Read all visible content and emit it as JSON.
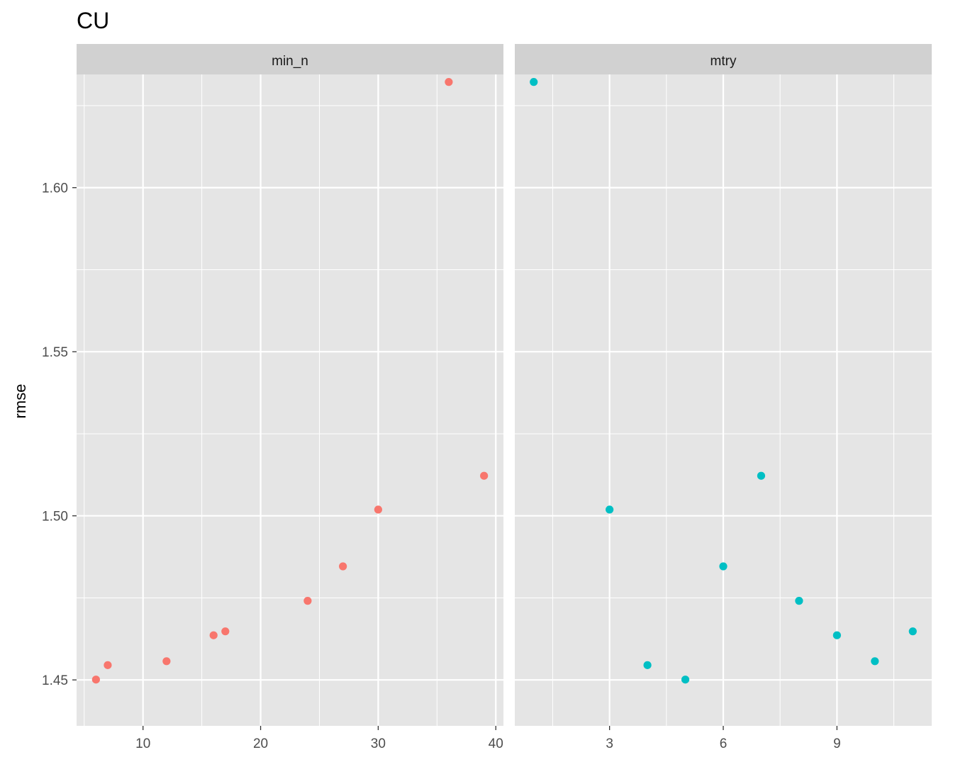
{
  "chart_data": {
    "type": "scatter",
    "title": "CU",
    "ylabel": "rmse",
    "xlabel": "",
    "ylim": [
      1.436,
      1.6345
    ],
    "y_ticks": [
      1.45,
      1.5,
      1.55,
      1.6
    ],
    "y_tick_labels": [
      "1.45",
      "1.50",
      "1.55",
      "1.60"
    ],
    "y_minor_ticks": [
      1.475,
      1.525,
      1.575,
      1.625
    ],
    "grid": true,
    "legend": "none",
    "panel_background": "#e5e5e5",
    "strip_background": "#d1d1d1",
    "panels": [
      {
        "strip": "min_n",
        "color": "#f8766d",
        "xlim": [
          4.35,
          40.65
        ],
        "x_ticks": [
          10,
          20,
          30,
          40
        ],
        "x_tick_labels": [
          "10",
          "20",
          "30",
          "40"
        ],
        "x_minor_ticks": [
          5,
          15,
          25,
          35
        ],
        "points": [
          {
            "x": 6,
            "y": 1.4501
          },
          {
            "x": 7,
            "y": 1.4545
          },
          {
            "x": 12,
            "y": 1.4557
          },
          {
            "x": 16,
            "y": 1.4636
          },
          {
            "x": 17,
            "y": 1.4648
          },
          {
            "x": 24,
            "y": 1.4741
          },
          {
            "x": 27,
            "y": 1.4846
          },
          {
            "x": 30,
            "y": 1.5019
          },
          {
            "x": 36,
            "y": 1.6322
          },
          {
            "x": 39,
            "y": 1.5122
          }
        ]
      },
      {
        "strip": "mtry",
        "color": "#00bfc4",
        "xlim": [
          0.5,
          11.5
        ],
        "x_ticks": [
          3,
          6,
          9
        ],
        "x_tick_labels": [
          "3",
          "6",
          "9"
        ],
        "x_minor_ticks": [
          1.5,
          4.5,
          7.5,
          10.5
        ],
        "points": [
          {
            "x": 1,
            "y": 1.6322
          },
          {
            "x": 3,
            "y": 1.5019
          },
          {
            "x": 4,
            "y": 1.4545
          },
          {
            "x": 5,
            "y": 1.4501
          },
          {
            "x": 6,
            "y": 1.4846
          },
          {
            "x": 7,
            "y": 1.5122
          },
          {
            "x": 8,
            "y": 1.4741
          },
          {
            "x": 9,
            "y": 1.4636
          },
          {
            "x": 10,
            "y": 1.4557
          },
          {
            "x": 11,
            "y": 1.4648
          }
        ]
      }
    ]
  }
}
